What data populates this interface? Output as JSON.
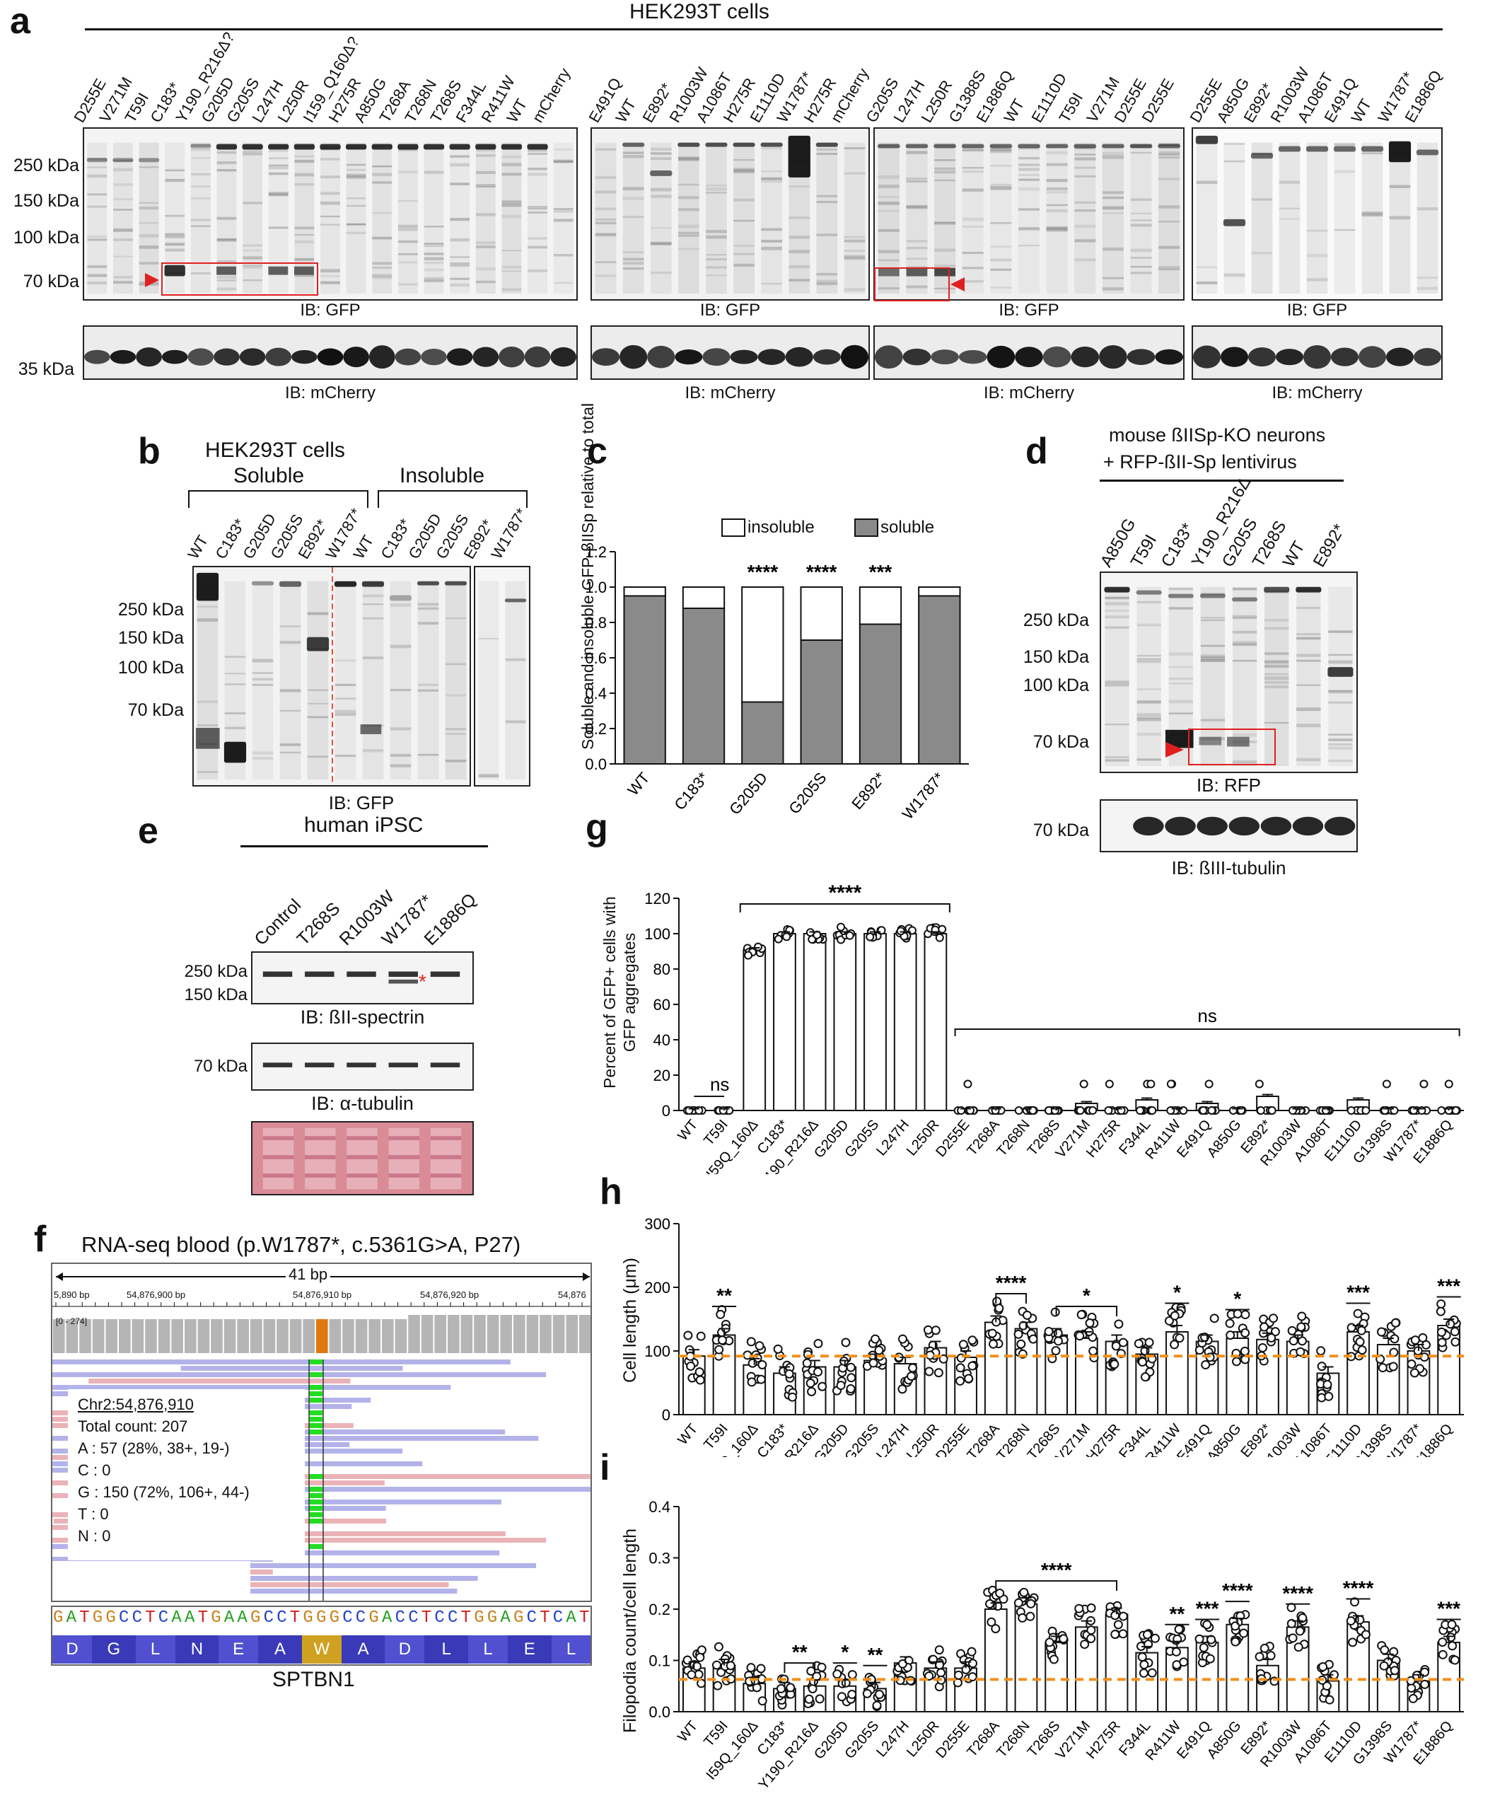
{
  "panels": {
    "a": "a",
    "b": "b",
    "c": "c",
    "d": "d",
    "e": "e",
    "f": "f",
    "g": "g",
    "h": "h",
    "i": "i"
  },
  "a": {
    "title": "HEK293T cells",
    "blot1_lanes": [
      "D255E",
      "V271M",
      "T59I",
      "C183*",
      "Y190_R216Δ?",
      "G205D",
      "G205S",
      "L247H",
      "L250R",
      "I159_Q160Δ?",
      "H275R",
      "A850G",
      "T268A",
      "T268N",
      "T268S",
      "F344L",
      "R411W",
      "WT",
      "mCherry"
    ],
    "blot2_lanes": [
      "E491Q",
      "WT",
      "E892*",
      "R1003W",
      "A1086T",
      "H275R",
      "E1110D",
      "W1787*",
      "H275R",
      "mCherry"
    ],
    "blot3_lanes": [
      "G205S",
      "L247H",
      "L250R",
      "G1388S",
      "E1886Q",
      "WT",
      "E1110D",
      "T59I",
      "V271M",
      "D255E",
      "D255E"
    ],
    "blot4_lanes": [
      "D255E",
      "A850G",
      "E892*",
      "R1003W",
      "A1086T",
      "E491Q",
      "WT",
      "W1787*",
      "E1886Q"
    ],
    "markers": [
      "250 kDa",
      "150 kDa",
      "100 kDa",
      "70 kDa"
    ],
    "marker_35": "35 kDa",
    "ib_gfp": "IB: GFP",
    "ib_mcherry": "IB: mCherry"
  },
  "b": {
    "title": "HEK293T cells",
    "soluble": "Soluble",
    "insoluble": "Insoluble",
    "lanes": [
      "WT",
      "C183*",
      "G205D",
      "G205S",
      "E892*",
      "W1787*",
      "WT",
      "C183*",
      "G205D",
      "G205S",
      "E892*",
      "W1787*"
    ],
    "markers": [
      "250 kDa",
      "150 kDa",
      "100 kDa",
      "70 kDa"
    ],
    "ib": "IB: GFP"
  },
  "c": {
    "chart_data": {
      "type": "bar",
      "stacked": true,
      "categories": [
        "WT",
        "C183*",
        "G205D",
        "G205S",
        "E892*",
        "W1787*"
      ],
      "series": [
        {
          "name": "soluble",
          "values": [
            0.95,
            0.88,
            0.35,
            0.7,
            0.79,
            0.95
          ],
          "color": "#8a8a8a"
        },
        {
          "name": "insoluble",
          "values": [
            0.05,
            0.12,
            0.65,
            0.3,
            0.21,
            0.05
          ],
          "color": "#ffffff"
        }
      ],
      "significance": [
        "",
        "",
        "****",
        "****",
        "***",
        ""
      ],
      "ylabel": "Soluble and insoluble GFP-βIISp relative to total",
      "ylim": [
        0,
        1.2
      ],
      "yticks": [
        "0.0",
        "0.2",
        "0.4",
        "0.6",
        "0.8",
        "1.0",
        "1.2"
      ],
      "legend": [
        "insoluble",
        "soluble"
      ]
    }
  },
  "d": {
    "title1": "mouse ßIISp-KO neurons",
    "title2": "+ RFP-ßII-Sp lentivirus",
    "lanes": [
      "A850G",
      "T59I",
      "C183*",
      "Y190_R216Δ",
      "G205S",
      "T268S",
      "WT",
      "E892*"
    ],
    "markers": [
      "250 kDa",
      "150 kDa",
      "100 kDa",
      "70 kDa"
    ],
    "marker_tub": "70 kDa",
    "ib1": "IB: RFP",
    "ib2": "IB: ßIII-tubulin"
  },
  "e": {
    "title": "human iPSC",
    "lanes": [
      "Control",
      "T268S",
      "R1003W",
      "W1787*",
      "E1886Q"
    ],
    "markers": [
      "250 kDa",
      "150 kDa"
    ],
    "marker_tub": "70 kDa",
    "ib1": "IB: ßII-spectrin",
    "ib2": "IB: α-tubulin",
    "star": "*"
  },
  "f": {
    "title": "RNA-seq blood (p.W1787*, c.5361G>A, P27)",
    "span": "41 bp",
    "ticks": [
      "5,890 bp",
      "54,876,900 bp",
      "54,876,910 bp",
      "54,876,920 bp",
      "54,876"
    ],
    "range": "[0 - 274]",
    "popup": [
      "Chr2:54,876,910",
      "Total count: 207",
      "A : 57 (28%, 38+, 19-)",
      "C : 0",
      "G : 150 (72%, 106+, 44-)",
      "T : 0",
      "N : 0"
    ],
    "sequence": "GATGGCCTCAATGAAGCCTGGGCCGACCTCCTGGAGCTCAT",
    "aa": [
      "D",
      "G",
      "L",
      "N",
      "E",
      "A",
      "W",
      "A",
      "D",
      "L",
      "L",
      "E",
      "L"
    ],
    "gene": "SPTBN1"
  },
  "g": {
    "chart_data": {
      "type": "bar",
      "categories": [
        "WT",
        "T59I",
        "I59Q_160Δ",
        "C183*",
        "Y190_R216Δ",
        "G205D",
        "G205S",
        "L247H",
        "L250R",
        "D255E",
        "T268A",
        "T268N",
        "T268S",
        "V271M",
        "H275R",
        "F344L",
        "R411W",
        "E491Q",
        "A850G",
        "E892*",
        "R1003W",
        "A1086T",
        "E1110D",
        "G1398S",
        "W1787*",
        "E1886Q"
      ],
      "values": [
        0,
        0,
        91,
        100,
        100,
        100,
        100,
        100,
        100,
        0,
        0,
        0,
        0,
        4,
        0,
        6,
        0,
        4,
        0,
        8,
        0,
        0,
        6,
        0,
        0,
        0
      ],
      "ylabel": "Percent of GFP+ cells with GFP aggregates",
      "ylim": [
        0,
        120
      ],
      "yticks": [
        "0",
        "20",
        "40",
        "60",
        "80",
        "100",
        "120"
      ],
      "sig_ns1": "ns",
      "sig_main": "****",
      "sig_ns2": "ns"
    }
  },
  "h": {
    "chart_data": {
      "type": "bar",
      "categories": [
        "WT",
        "T59I",
        "I59Q_160Δ",
        "C183*",
        "Y190_R216Δ",
        "G205D",
        "G205S",
        "L247H",
        "L250R",
        "D255E",
        "T268A",
        "T268N",
        "T268S",
        "V271M",
        "H275R",
        "F344L",
        "R411W",
        "E491Q",
        "A850G",
        "E892*",
        "R1003W",
        "A1086T",
        "E1110D",
        "G1398S",
        "W1787*",
        "E1886Q"
      ],
      "values": [
        92,
        125,
        78,
        65,
        75,
        75,
        85,
        80,
        105,
        90,
        145,
        135,
        125,
        120,
        115,
        95,
        130,
        115,
        120,
        118,
        115,
        65,
        130,
        110,
        100,
        140
      ],
      "reference": 92,
      "ylabel": "Cell length (μm)",
      "ylim": [
        0,
        300
      ],
      "yticks": [
        "0",
        "100",
        "200",
        "300"
      ],
      "sigs": [
        {
          "label": "**",
          "from": 1,
          "to": 1
        },
        {
          "label": "****",
          "from": 10,
          "to": 11
        },
        {
          "label": "*",
          "from": 12,
          "to": 14
        },
        {
          "label": "*",
          "from": 16,
          "to": 16
        },
        {
          "label": "*",
          "from": 18,
          "to": 18
        },
        {
          "label": "***",
          "from": 22,
          "to": 22
        },
        {
          "label": "***",
          "from": 25,
          "to": 25
        }
      ]
    }
  },
  "i": {
    "chart_data": {
      "type": "bar",
      "categories": [
        "WT",
        "T59I",
        "I59Q_160Δ",
        "C183*",
        "Y190_R216Δ",
        "G205D",
        "G205S",
        "L247H",
        "L250R",
        "D255E",
        "T268A",
        "T268N",
        "T268S",
        "V271M",
        "H275R",
        "F344L",
        "R411W",
        "E491Q",
        "A850G",
        "E892*",
        "R1003W",
        "A1086T",
        "E1110D",
        "G1398S",
        "W1787*",
        "E1886Q"
      ],
      "values": [
        0.085,
        0.09,
        0.055,
        0.045,
        0.05,
        0.05,
        0.045,
        0.095,
        0.085,
        0.085,
        0.2,
        0.21,
        0.135,
        0.165,
        0.19,
        0.115,
        0.125,
        0.135,
        0.17,
        0.09,
        0.165,
        0.06,
        0.175,
        0.1,
        0.06,
        0.135
      ],
      "reference": 0.063,
      "ylabel": "Filopodia count/cell length",
      "ylim": [
        0,
        0.4
      ],
      "yticks": [
        "0.0",
        "0.1",
        "0.2",
        "0.3",
        "0.4"
      ],
      "sigs": [
        {
          "label": "**",
          "from": 3,
          "to": 4
        },
        {
          "label": "*",
          "from": 5,
          "to": 5
        },
        {
          "label": "**",
          "from": 6,
          "to": 6
        },
        {
          "label": "****",
          "from": 10,
          "to": 14
        },
        {
          "label": "**",
          "from": 16,
          "to": 16
        },
        {
          "label": "***",
          "from": 17,
          "to": 17
        },
        {
          "label": "****",
          "from": 18,
          "to": 18
        },
        {
          "label": "****",
          "from": 20,
          "to": 20
        },
        {
          "label": "****",
          "from": 22,
          "to": 22
        },
        {
          "label": "***",
          "from": 25,
          "to": 25
        }
      ]
    }
  }
}
